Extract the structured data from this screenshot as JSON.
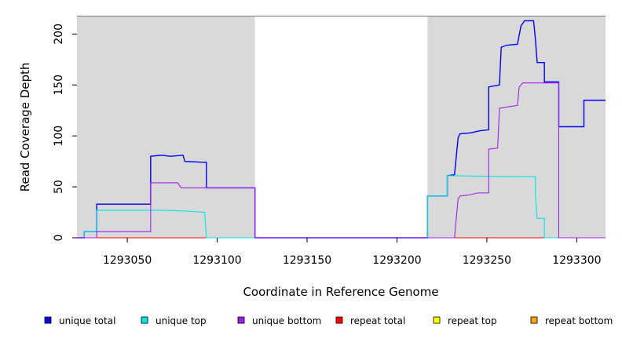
{
  "chart_data": {
    "type": "line",
    "title": "",
    "xlabel": "Coordinate in Reference Genome",
    "ylabel": "Read Coverage Depth",
    "xlim": [
      1293022,
      1293316
    ],
    "ylim": [
      0,
      218
    ],
    "xticks": [
      1293050,
      1293100,
      1293150,
      1293200,
      1293250,
      1293300
    ],
    "yticks": [
      0,
      50,
      100,
      150,
      200
    ],
    "shaded_regions": [
      [
        1293022,
        1293121
      ],
      [
        1293217,
        1293316
      ]
    ],
    "series": [
      {
        "name": "unique total",
        "color": "#0000ff",
        "points": [
          [
            1293022,
            0
          ],
          [
            1293026,
            0
          ],
          [
            1293026,
            6
          ],
          [
            1293033,
            6
          ],
          [
            1293033,
            33
          ],
          [
            1293063,
            33
          ],
          [
            1293063,
            80
          ],
          [
            1293069,
            81
          ],
          [
            1293074,
            80
          ],
          [
            1293081,
            81
          ],
          [
            1293082,
            75
          ],
          [
            1293094,
            74
          ],
          [
            1293094,
            49
          ],
          [
            1293121,
            49
          ],
          [
            1293121,
            0
          ],
          [
            1293217,
            0
          ],
          [
            1293217,
            41
          ],
          [
            1293228,
            41
          ],
          [
            1293228,
            61
          ],
          [
            1293232,
            62
          ],
          [
            1293234,
            98
          ],
          [
            1293235,
            102
          ],
          [
            1293241,
            103
          ],
          [
            1293246,
            105
          ],
          [
            1293251,
            106
          ],
          [
            1293251,
            148
          ],
          [
            1293257,
            150
          ],
          [
            1293258,
            187
          ],
          [
            1293261,
            189
          ],
          [
            1293267,
            190
          ],
          [
            1293269,
            208
          ],
          [
            1293271,
            213
          ],
          [
            1293276,
            213
          ],
          [
            1293277,
            195
          ],
          [
            1293278,
            172
          ],
          [
            1293282,
            172
          ],
          [
            1293282,
            153
          ],
          [
            1293290,
            153
          ],
          [
            1293290,
            109
          ],
          [
            1293304,
            109
          ],
          [
            1293304,
            135
          ],
          [
            1293309,
            135
          ],
          [
            1293316,
            135
          ]
        ]
      },
      {
        "name": "unique top",
        "color": "#00e5e5",
        "points": [
          [
            1293022,
            0
          ],
          [
            1293026,
            0
          ],
          [
            1293026,
            6
          ],
          [
            1293033,
            6
          ],
          [
            1293033,
            27
          ],
          [
            1293070,
            27
          ],
          [
            1293085,
            26
          ],
          [
            1293093,
            25
          ],
          [
            1293094,
            0
          ],
          [
            1293217,
            0
          ],
          [
            1293217,
            41
          ],
          [
            1293228,
            41
          ],
          [
            1293228,
            61
          ],
          [
            1293266,
            60
          ],
          [
            1293277,
            60
          ],
          [
            1293277,
            42
          ],
          [
            1293278,
            19
          ],
          [
            1293282,
            19
          ],
          [
            1293282,
            0
          ],
          [
            1293316,
            0
          ]
        ]
      },
      {
        "name": "unique bottom",
        "color": "#a020f0",
        "points": [
          [
            1293022,
            0
          ],
          [
            1293033,
            0
          ],
          [
            1293033,
            6
          ],
          [
            1293063,
            6
          ],
          [
            1293063,
            54
          ],
          [
            1293078,
            54
          ],
          [
            1293080,
            49
          ],
          [
            1293094,
            49
          ],
          [
            1293121,
            49
          ],
          [
            1293121,
            0
          ],
          [
            1293232,
            0
          ],
          [
            1293234,
            38
          ],
          [
            1293235,
            41
          ],
          [
            1293240,
            42
          ],
          [
            1293245,
            44
          ],
          [
            1293251,
            44
          ],
          [
            1293251,
            87
          ],
          [
            1293256,
            88
          ],
          [
            1293257,
            127
          ],
          [
            1293260,
            128
          ],
          [
            1293267,
            130
          ],
          [
            1293268,
            148
          ],
          [
            1293270,
            152
          ],
          [
            1293290,
            152
          ],
          [
            1293290,
            0
          ],
          [
            1293316,
            0
          ]
        ]
      },
      {
        "name": "repeat total",
        "color": "#ff0000",
        "points": [
          [
            1293022,
            0
          ],
          [
            1293316,
            0
          ]
        ]
      },
      {
        "name": "repeat top",
        "color": "#ffff00",
        "points": [
          [
            1293022,
            0
          ],
          [
            1293316,
            0
          ]
        ]
      },
      {
        "name": "repeat bottom",
        "color": "#ffa500",
        "points": [
          [
            1293022,
            0
          ],
          [
            1293316,
            0
          ]
        ]
      }
    ]
  }
}
